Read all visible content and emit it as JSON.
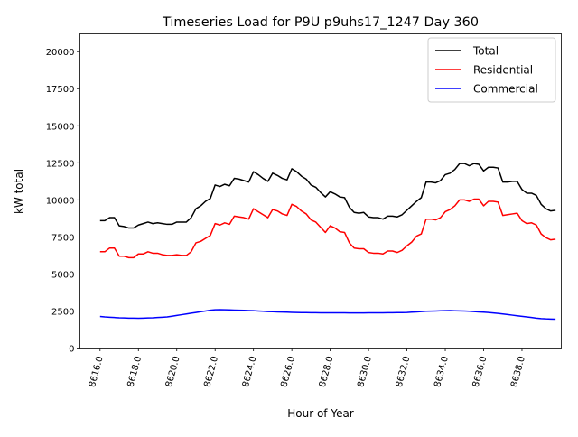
{
  "chart_data": {
    "type": "line",
    "title": "Timeseries Load for P9U p9uhs17_1247  Day 360",
    "xlabel": "Hour of Year",
    "ylabel": "kW total",
    "xlim": [
      8614.95,
      8640.05
    ],
    "ylim": [
      0,
      21200
    ],
    "x_start": 8616.0,
    "x_step": 0.25,
    "xticks": [
      8616,
      8618,
      8620,
      8622,
      8624,
      8626,
      8628,
      8630,
      8632,
      8634,
      8636,
      8638
    ],
    "xtick_labels": [
      "8616.0",
      "8618.0",
      "8620.0",
      "8622.0",
      "8624.0",
      "8626.0",
      "8628.0",
      "8630.0",
      "8632.0",
      "8634.0",
      "8636.0",
      "8638.0"
    ],
    "yticks": [
      0,
      2500,
      5000,
      7500,
      10000,
      12500,
      15000,
      17500,
      20000
    ],
    "ytick_labels": [
      "0",
      "2500",
      "5000",
      "7500",
      "10000",
      "12500",
      "15000",
      "17500",
      "20000"
    ],
    "legend_position": "top-right",
    "series": [
      {
        "name": "Total",
        "color": "#000000",
        "values": [
          8600,
          8600,
          8800,
          8800,
          8250,
          8200,
          8100,
          8100,
          8300,
          8400,
          8500,
          8400,
          8450,
          8400,
          8350,
          8350,
          8500,
          8500,
          8500,
          8800,
          9400,
          9600,
          9900,
          10100,
          11000,
          10900,
          11050,
          10950,
          11450,
          11400,
          11300,
          11200,
          11900,
          11700,
          11450,
          11250,
          11800,
          11650,
          11450,
          11350,
          12100,
          11900,
          11600,
          11400,
          11000,
          10850,
          10500,
          10200,
          10550,
          10400,
          10200,
          10150,
          9500,
          9150,
          9100,
          9150,
          8850,
          8800,
          8800,
          8700,
          8900,
          8900,
          8850,
          9000,
          9300,
          9600,
          9900,
          10150,
          11200,
          11200,
          11150,
          11300,
          11700,
          11800,
          12050,
          12450,
          12450,
          12300,
          12450,
          12400,
          11950,
          12200,
          12200,
          12150,
          11200,
          11200,
          11250,
          11250,
          10700,
          10450,
          10450,
          10300,
          9700,
          9400,
          9250,
          9300
        ]
      },
      {
        "name": "Residential",
        "color": "#ff0000",
        "values": [
          6500,
          6500,
          6750,
          6750,
          6200,
          6200,
          6100,
          6100,
          6350,
          6350,
          6500,
          6400,
          6400,
          6300,
          6250,
          6250,
          6300,
          6250,
          6250,
          6500,
          7100,
          7200,
          7400,
          7600,
          8400,
          8300,
          8450,
          8350,
          8900,
          8850,
          8800,
          8700,
          9400,
          9200,
          9000,
          8800,
          9350,
          9250,
          9050,
          8950,
          9700,
          9550,
          9250,
          9050,
          8650,
          8500,
          8150,
          7800,
          8250,
          8100,
          7850,
          7800,
          7100,
          6750,
          6700,
          6700,
          6450,
          6400,
          6400,
          6350,
          6550,
          6550,
          6450,
          6600,
          6900,
          7150,
          7550,
          7700,
          8700,
          8700,
          8650,
          8800,
          9200,
          9350,
          9600,
          10000,
          10000,
          9900,
          10050,
          10050,
          9600,
          9900,
          9900,
          9850,
          8950,
          9000,
          9050,
          9100,
          8600,
          8400,
          8450,
          8300,
          7700,
          7450,
          7300,
          7350
        ]
      },
      {
        "name": "Commercial",
        "color": "#0000ff",
        "values": [
          2130,
          2100,
          2080,
          2060,
          2040,
          2030,
          2020,
          2020,
          2010,
          2020,
          2030,
          2040,
          2060,
          2080,
          2100,
          2150,
          2200,
          2250,
          2300,
          2350,
          2400,
          2450,
          2500,
          2550,
          2580,
          2590,
          2580,
          2570,
          2560,
          2550,
          2540,
          2530,
          2520,
          2500,
          2480,
          2460,
          2450,
          2440,
          2430,
          2420,
          2410,
          2400,
          2395,
          2390,
          2385,
          2380,
          2378,
          2376,
          2375,
          2374,
          2373,
          2372,
          2371,
          2370,
          2370,
          2370,
          2372,
          2374,
          2376,
          2378,
          2380,
          2385,
          2390,
          2395,
          2400,
          2420,
          2440,
          2460,
          2480,
          2490,
          2500,
          2510,
          2520,
          2525,
          2515,
          2505,
          2495,
          2480,
          2460,
          2440,
          2420,
          2400,
          2370,
          2340,
          2300,
          2260,
          2220,
          2180,
          2140,
          2100,
          2060,
          2020,
          1990,
          1970,
          1960,
          1950
        ]
      }
    ]
  }
}
